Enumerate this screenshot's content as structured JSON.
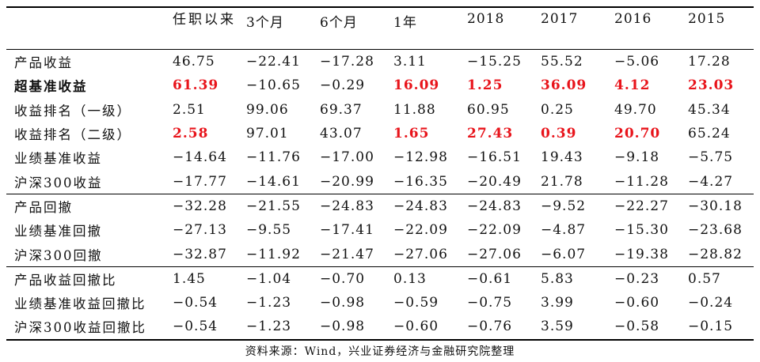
{
  "table": {
    "headers": [
      "",
      "任职以来",
      "3个月",
      "6个月",
      "1年",
      "2018",
      "2017",
      "2016",
      "2015"
    ],
    "rows": [
      {
        "label": "产品收益",
        "values": [
          "46.75",
          "−22.41",
          "−17.28",
          "3.11",
          "−15.25",
          "55.52",
          "−5.06",
          "17.28"
        ],
        "red": [
          false,
          false,
          false,
          false,
          false,
          false,
          false,
          false
        ]
      },
      {
        "label": "超基准收益",
        "values": [
          "61.39",
          "−10.65",
          "−0.29",
          "16.09",
          "1.25",
          "36.09",
          "4.12",
          "23.03"
        ],
        "red": [
          true,
          false,
          false,
          true,
          true,
          true,
          true,
          true
        ]
      },
      {
        "label": "收益排名（一级）",
        "values": [
          "2.51",
          "99.06",
          "69.37",
          "11.88",
          "60.95",
          "0.25",
          "49.70",
          "45.34"
        ],
        "red": [
          false,
          false,
          false,
          false,
          false,
          false,
          false,
          false
        ]
      },
      {
        "label": "收益排名（二级）",
        "values": [
          "2.58",
          "97.01",
          "43.07",
          "1.65",
          "27.43",
          "0.39",
          "20.70",
          "65.24"
        ],
        "red": [
          true,
          false,
          false,
          true,
          true,
          true,
          true,
          false
        ]
      },
      {
        "label": "业绩基准收益",
        "values": [
          "−14.64",
          "−11.76",
          "−17.00",
          "−12.98",
          "−16.51",
          "19.43",
          "−9.18",
          "−5.75"
        ],
        "red": [
          false,
          false,
          false,
          false,
          false,
          false,
          false,
          false
        ]
      },
      {
        "label": "沪深300收益",
        "values": [
          "−17.77",
          "−14.61",
          "−20.99",
          "−16.35",
          "−20.49",
          "21.78",
          "−11.28",
          "−4.27"
        ],
        "red": [
          false,
          false,
          false,
          false,
          false,
          false,
          false,
          false
        ]
      },
      {
        "label": "产品回撤",
        "values": [
          "−32.28",
          "−21.55",
          "−24.83",
          "−24.83",
          "−24.83",
          "−9.52",
          "−22.27",
          "−30.18"
        ],
        "red": [
          false,
          false,
          false,
          false,
          false,
          false,
          false,
          false
        ]
      },
      {
        "label": "业绩基准回撤",
        "values": [
          "−27.13",
          "−9.55",
          "−17.41",
          "−22.09",
          "−22.09",
          "−4.87",
          "−15.30",
          "−23.68"
        ],
        "red": [
          false,
          false,
          false,
          false,
          false,
          false,
          false,
          false
        ]
      },
      {
        "label": "沪深300回撤",
        "values": [
          "−32.87",
          "−11.92",
          "−21.47",
          "−27.06",
          "−27.06",
          "−6.07",
          "−19.38",
          "−28.82"
        ],
        "red": [
          false,
          false,
          false,
          false,
          false,
          false,
          false,
          false
        ]
      },
      {
        "label": "产品收益回撤比",
        "values": [
          "1.45",
          "−1.04",
          "−0.70",
          "0.13",
          "−0.61",
          "5.83",
          "−0.23",
          "0.57"
        ],
        "red": [
          false,
          false,
          false,
          false,
          false,
          false,
          false,
          false
        ]
      },
      {
        "label": "业绩基准收益回撤比",
        "values": [
          "−0.54",
          "−1.23",
          "−0.98",
          "−0.59",
          "−0.75",
          "3.99",
          "−0.60",
          "−0.24"
        ],
        "red": [
          false,
          false,
          false,
          false,
          false,
          false,
          false,
          false
        ]
      },
      {
        "label": "沪深300收益回撤比",
        "values": [
          "−0.54",
          "−1.23",
          "−0.98",
          "−0.60",
          "−0.76",
          "3.59",
          "−0.58",
          "−0.15"
        ],
        "red": [
          false,
          false,
          false,
          false,
          false,
          false,
          false,
          false
        ]
      }
    ]
  },
  "source": "资料来源：Wind，兴业证券经济与金融研究院整理"
}
